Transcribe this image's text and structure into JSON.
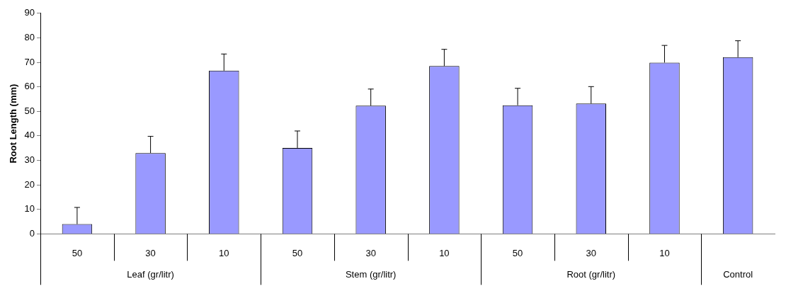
{
  "chart_data": {
    "type": "bar",
    "ylabel": "Root Length (mm)",
    "categories": [
      "50",
      "30",
      "10",
      "50",
      "30",
      "10",
      "50",
      "30",
      "10",
      null
    ],
    "values": [
      4,
      33,
      66.6,
      35.1,
      52.3,
      68.5,
      52.5,
      53.2,
      69.9,
      72.1
    ],
    "errors": [
      [
        4,
        10.8
      ],
      [
        33,
        39.8
      ],
      [
        66.6,
        73.4
      ],
      [
        35.1,
        42
      ],
      [
        52.3,
        59.1
      ],
      [
        68.5,
        75.3
      ],
      [
        52.5,
        59.4
      ],
      [
        53.2,
        60.1
      ],
      [
        69.9,
        76.9
      ],
      [
        72.1,
        78.8
      ]
    ],
    "color": "#9999ff",
    "annotations": [
      "Leaf (gr/litr)",
      "Stem (gr/litr)",
      "Root (gr/litr)",
      "Control"
    ],
    "ylim": [
      0,
      90
    ],
    "yticks": [
      0,
      10,
      20,
      30,
      40,
      50,
      60,
      70,
      80,
      90
    ],
    "grid": false,
    "legend": false
  }
}
